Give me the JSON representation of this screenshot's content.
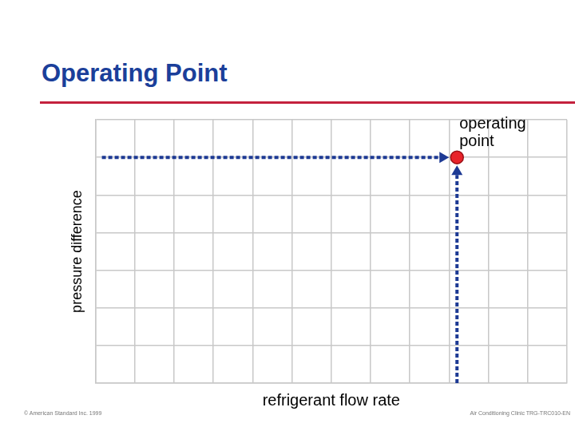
{
  "footer_left": "© American Standard Inc. 1999",
  "footer_right": "Air Conditioning Clinic TRG-TRC010-EN",
  "chart_data": {
    "type": "scatter",
    "title": "Operating Point",
    "x_label": "refrigerant flow rate",
    "y_label": "pressure difference",
    "x": [
      9.2
    ],
    "values": [
      6
    ],
    "color": "#e8232a",
    "marker": "circle",
    "annotation": "operating point",
    "xlim": [
      0,
      12
    ],
    "ylim": [
      0,
      7
    ],
    "xticks": [
      0,
      1,
      2,
      3,
      4,
      5,
      6,
      7,
      8,
      9,
      10,
      11,
      12
    ],
    "yticks": [
      0,
      1,
      2,
      3,
      4,
      5,
      6,
      7
    ],
    "grid": true,
    "tick_labels": false
  }
}
